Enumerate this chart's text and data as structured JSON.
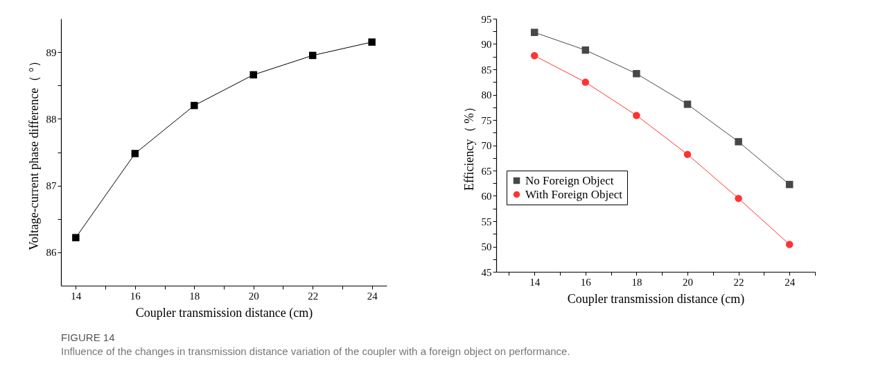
{
  "chart_data": [
    {
      "type": "line",
      "xlabel": "Coupler transmission distance (cm)",
      "ylabel": "Voltage-current phase difference（ °）",
      "x": [
        14,
        16,
        18,
        20,
        22,
        24
      ],
      "series": [
        {
          "color": "#000000",
          "values": [
            86.22,
            87.48,
            88.2,
            88.66,
            88.95,
            89.15
          ]
        }
      ],
      "xlim": [
        13.5,
        24.5
      ],
      "ylim": [
        85.5,
        89.5
      ],
      "xticks": [
        14,
        {
          "value": 15,
          "label": null
        },
        16,
        {
          "value": 17,
          "label": null
        },
        18,
        {
          "value": 19,
          "label": null
        },
        20,
        {
          "value": 21,
          "label": null
        },
        22,
        {
          "value": 23,
          "label": null
        },
        24
      ],
      "yticks": [
        86,
        {
          "value": 86.5,
          "label": null
        },
        87,
        {
          "value": 87.5,
          "label": null
        },
        88,
        {
          "value": 88.5,
          "label": null
        },
        89
      ],
      "marker": "square",
      "line_style": "solid",
      "grid": false,
      "legend": false,
      "annotations": [
        "FIGURE 14",
        "Influence of the changes in transmission distance variation of the coupler with a foreign object on performance."
      ]
    },
    {
      "type": "line",
      "xlabel": "Coupler transmission distance (cm)",
      "ylabel": "Efficiency（ %）",
      "x": [
        14,
        16,
        18,
        20,
        22,
        24
      ],
      "series": [
        {
          "name": "No Foreign Object",
          "color": "#474747",
          "marker": "square",
          "values": [
            92.3,
            88.8,
            84.15,
            78.1,
            70.7,
            62.25
          ]
        },
        {
          "name": "With Foreign Object",
          "color": "#ff3333",
          "marker": "circle",
          "values": [
            87.7,
            82.45,
            75.9,
            68.2,
            59.5,
            50.4
          ]
        }
      ],
      "xlim": [
        12.5,
        25
      ],
      "ylim": [
        45,
        95
      ],
      "xticks": [
        {
          "value": 13,
          "label": null
        },
        14,
        {
          "value": 15,
          "label": null
        },
        16,
        {
          "value": 17,
          "label": null
        },
        18,
        {
          "value": 19,
          "label": null
        },
        20,
        {
          "value": 21,
          "label": null
        },
        22,
        {
          "value": 23,
          "label": null
        },
        24,
        {
          "value": 25,
          "label": null
        }
      ],
      "yticks": [
        45,
        {
          "value": 47.5,
          "label": null
        },
        50,
        {
          "value": 52.5,
          "label": null
        },
        55,
        {
          "value": 57.5,
          "label": null
        },
        60,
        {
          "value": 62.5,
          "label": null
        },
        65,
        {
          "value": 67.5,
          "label": null
        },
        70,
        {
          "value": 72.5,
          "label": null
        },
        75,
        {
          "value": 77.5,
          "label": null
        },
        80,
        {
          "value": 82.5,
          "label": null
        },
        85,
        {
          "value": 87.5,
          "label": null
        },
        90,
        {
          "value": 92.5,
          "label": null
        },
        95
      ],
      "line_style": "solid",
      "grid": false,
      "legend": "left"
    }
  ]
}
